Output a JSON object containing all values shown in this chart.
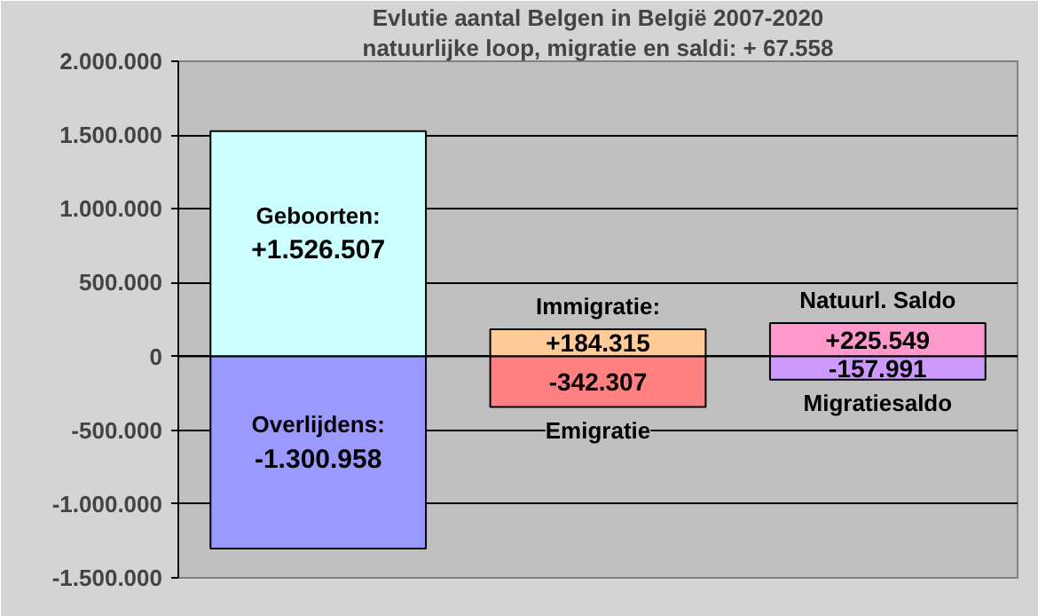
{
  "chart_data": {
    "type": "bar",
    "title": "Evlutie aantal Belgen in België 2007-2020",
    "subtitle": "natuurlijke loop, migratie en saldi: + 67.558",
    "categories": [
      null,
      null,
      null
    ],
    "stacked": true,
    "grid": "y",
    "legend": false,
    "ylim": [
      -1500000,
      2000000
    ],
    "yticks": [
      {
        "value": -1500000,
        "label": "-1.500.000"
      },
      {
        "value": -1000000,
        "label": "-1.000.000"
      },
      {
        "value": -500000,
        "label": "-500.000"
      },
      0,
      {
        "value": 500000,
        "label": "500.000"
      },
      {
        "value": 1000000,
        "label": "1.000.000"
      },
      {
        "value": 1500000,
        "label": "1.500.000"
      },
      {
        "value": 2000000,
        "label": "2.000.000"
      }
    ],
    "series": [
      {
        "name": "Geboorten:",
        "color": "#ccffff",
        "values": [
          1526507,
          null,
          null
        ],
        "value_labels": [
          "+1.526.507",
          null,
          null
        ]
      },
      {
        "name": "Overlijdens:",
        "color": "#9999ff",
        "values": [
          -1300958,
          null,
          null
        ],
        "value_labels": [
          "-1.300.958",
          null,
          null
        ]
      },
      {
        "name": "Immigratie:",
        "color": "#ffcc99",
        "values": [
          null,
          184315,
          null
        ],
        "value_labels": [
          null,
          "+184.315",
          null
        ]
      },
      {
        "name": "Emigratie",
        "color": "#ff8080",
        "values": [
          null,
          -342307,
          null
        ],
        "value_labels": [
          null,
          "-342.307",
          null
        ]
      },
      {
        "name": "Natuurl. Saldo",
        "color": "#ff99cc",
        "values": [
          null,
          null,
          225549
        ],
        "value_labels": [
          null,
          null,
          "+225.549"
        ]
      },
      {
        "name": "Migratiesaldo",
        "color": "#cc99ff",
        "values": [
          null,
          null,
          -157991
        ],
        "value_labels": [
          null,
          null,
          "-157.991"
        ]
      }
    ]
  }
}
